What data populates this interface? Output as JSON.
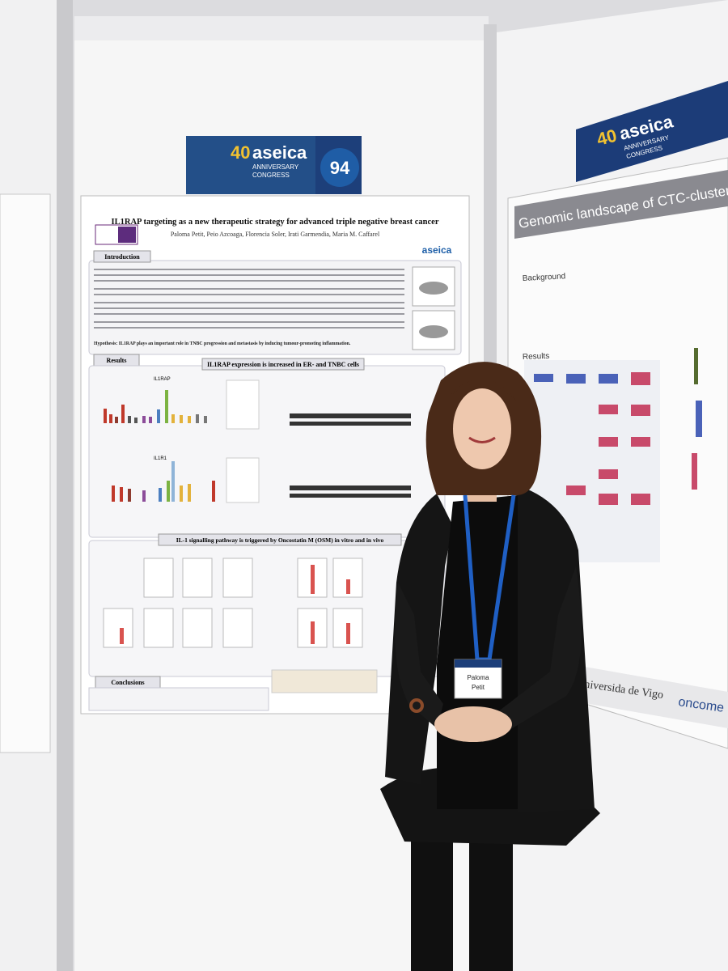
{
  "left_banner": {
    "number_40": "40",
    "brand": "aseica",
    "anniversary": "ANNIVERSARY",
    "congress": "CONGRESS",
    "board_number": "94"
  },
  "poster": {
    "title": "IL1RAP targeting as a new therapeutic strategy for advanced triple negative breast cancer",
    "authors": "Paloma Petit, Peio Azcoaga, Florencia Soler, Irati Garmendia, Maria M. Caffarel",
    "logo": "aseica",
    "sections": [
      "Introduction",
      "Results",
      "IL1RAP expression is increased in ER- and TNBC cells",
      "IL-1 signalling pathway is triggered by Oncostatin M (OSM) in vitro and in vivo",
      "Conclusions"
    ],
    "hypothesis": "Hypothesis: IL1RAP plays an important role in TNBC progression and metastasis by inducing tumour-promoting inflammation.",
    "panels": [
      "IL1RAP",
      "IL1R1"
    ]
  },
  "badge": {
    "first_name": "Paloma",
    "last_name": "Petit"
  },
  "right_banner": {
    "number_40": "40",
    "brand": "aseica",
    "anniversary": "ANNIVERSARY",
    "congress": "CONGRESS"
  },
  "right_poster": {
    "title": "Genomic landscape of CTC-clusters in b",
    "background": "Background",
    "results": "Results",
    "footer_left": "Universida de Vigo",
    "footer_right": "oncome"
  }
}
